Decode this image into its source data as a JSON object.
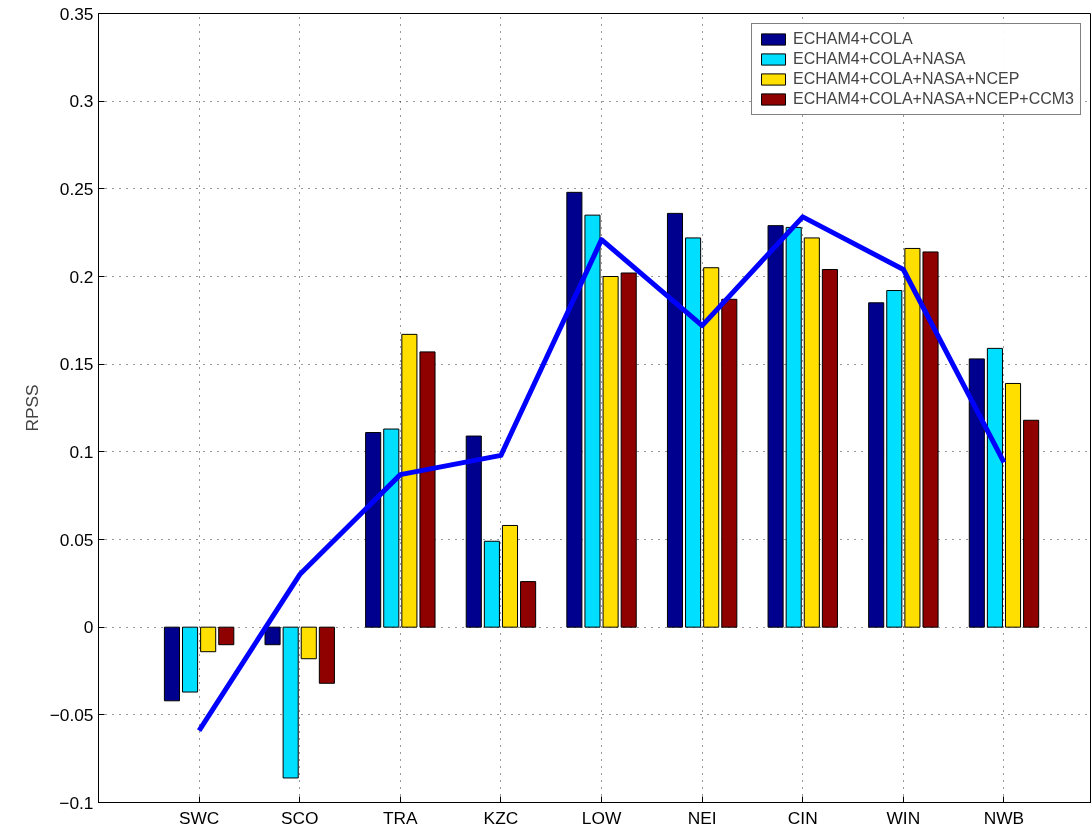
{
  "chart_data": {
    "type": "bar",
    "ylabel": "RPSS",
    "categories": [
      "SWC",
      "SCO",
      "TRA",
      "KZC",
      "LOW",
      "NEI",
      "CIN",
      "WIN",
      "NWB"
    ],
    "series": [
      {
        "name": "ECHAM4+COLA",
        "color": "#00008f",
        "values": [
          -0.042,
          -0.01,
          0.111,
          0.109,
          0.248,
          0.236,
          0.229,
          0.185,
          0.153
        ]
      },
      {
        "name": "ECHAM4+COLA+NASA",
        "color": "#00dfff",
        "values": [
          -0.037,
          -0.086,
          0.113,
          0.049,
          0.235,
          0.222,
          0.228,
          0.192,
          0.159
        ]
      },
      {
        "name": "ECHAM4+COLA+NASA+NCEP",
        "color": "#ffdf00",
        "values": [
          -0.014,
          -0.018,
          0.167,
          0.058,
          0.2,
          0.205,
          0.222,
          0.216,
          0.139
        ]
      },
      {
        "name": "ECHAM4+COLA+NASA+NCEP+CCM3",
        "color": "#8f0000",
        "values": [
          -0.01,
          -0.032,
          0.157,
          0.026,
          0.202,
          0.187,
          0.204,
          0.214,
          0.118
        ]
      },
      {
        "type": "line",
        "color": "#0000ff",
        "values": [
          -0.059,
          0.03,
          0.087,
          0.098,
          0.221,
          0.172,
          0.234,
          0.204,
          0.094
        ]
      }
    ],
    "ylim": [
      -0.1,
      0.35
    ],
    "yticks": [
      {
        "value": -0.1,
        "label": "−0.1"
      },
      {
        "value": -0.05,
        "label": "−0.05"
      },
      0,
      0.05,
      0.1,
      0.15,
      0.2,
      0.25,
      0.3,
      0.35
    ],
    "grid": true,
    "legend": "top right"
  }
}
